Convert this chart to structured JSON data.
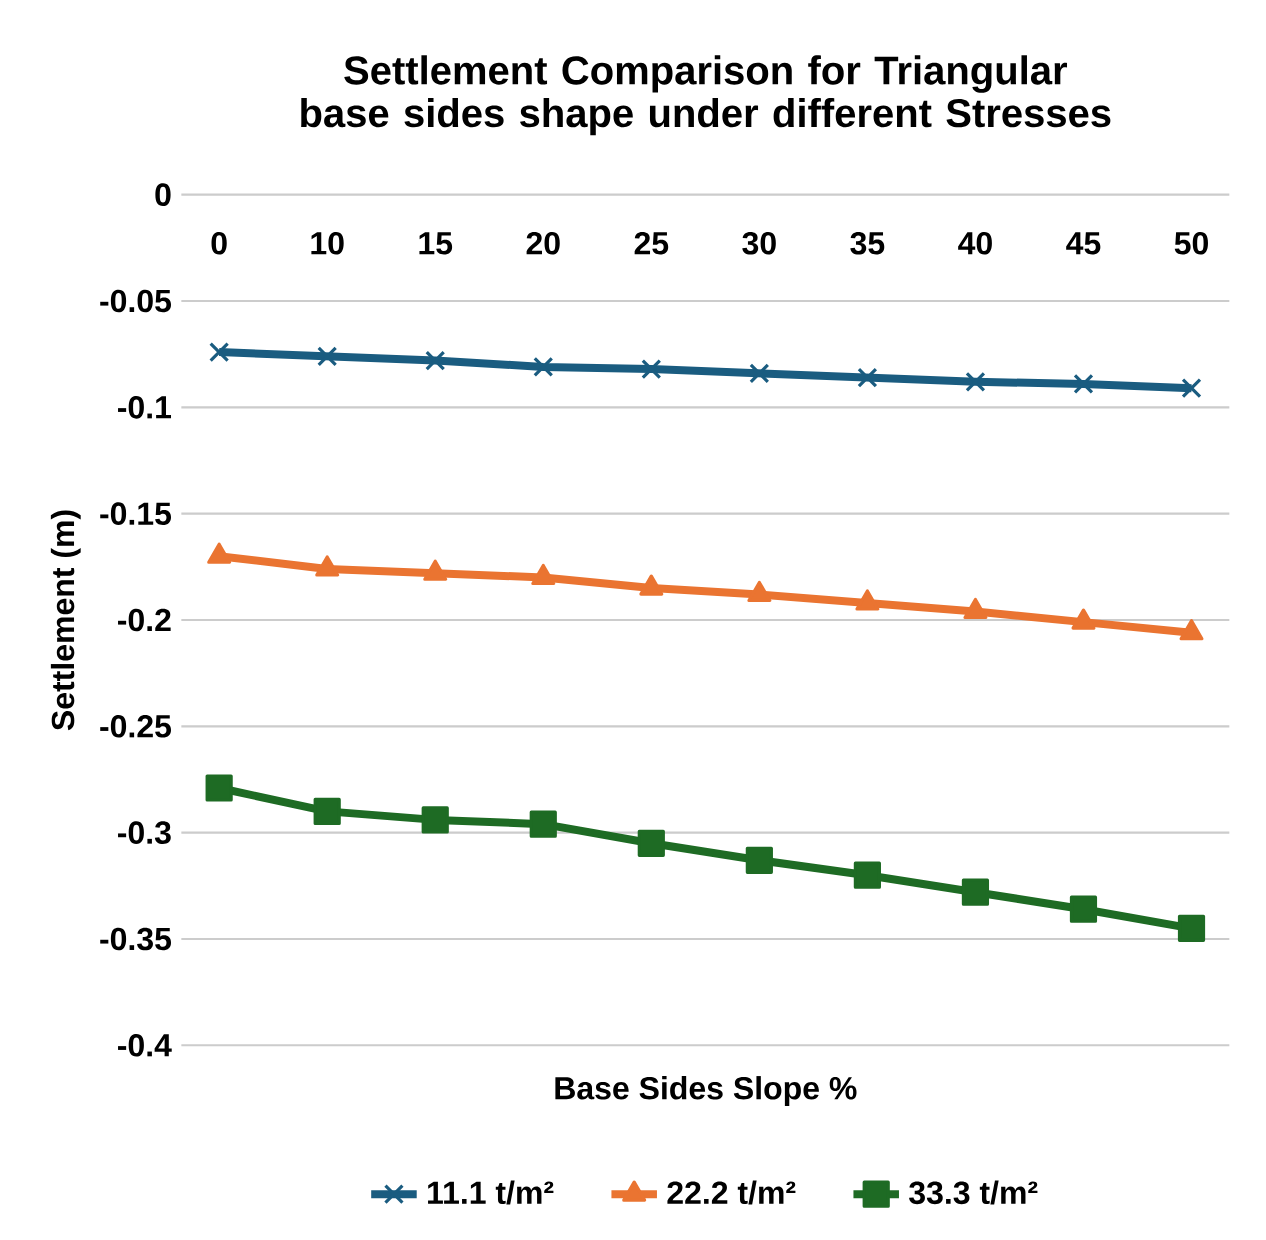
{
  "chart_data": {
    "type": "line",
    "title": "Settlement Comparison for Triangular base sides shape under different Stresses",
    "xlabel": "Base Sides Slope %",
    "ylabel": "Settlement (m)",
    "categories": [
      "0",
      "10",
      "15",
      "20",
      "25",
      "30",
      "35",
      "40",
      "45",
      "50"
    ],
    "series": [
      {
        "name": "11.1 t/m²",
        "color": "#1a5c80",
        "marker": "cross",
        "values": [
          -0.074,
          -0.076,
          -0.078,
          -0.081,
          -0.082,
          -0.084,
          -0.086,
          -0.088,
          -0.089,
          -0.091
        ]
      },
      {
        "name": "22.2 t/m²",
        "color": "#ea7431",
        "marker": "triangle",
        "values": [
          -0.17,
          -0.176,
          -0.178,
          -0.18,
          -0.185,
          -0.188,
          -0.192,
          -0.196,
          -0.201,
          -0.206
        ]
      },
      {
        "name": "33.3 t/m²",
        "color": "#1e6b24",
        "marker": "square",
        "values": [
          -0.279,
          -0.29,
          -0.294,
          -0.296,
          -0.305,
          -0.313,
          -0.32,
          -0.328,
          -0.336,
          -0.345
        ]
      }
    ],
    "ylim": [
      -0.4,
      0
    ],
    "yticks": [
      -0.4,
      -0.35,
      -0.3,
      -0.25,
      -0.2,
      -0.15,
      -0.1,
      -0.05,
      0
    ],
    "grid": "y",
    "legend": "bottom",
    "line_style": "solid"
  }
}
